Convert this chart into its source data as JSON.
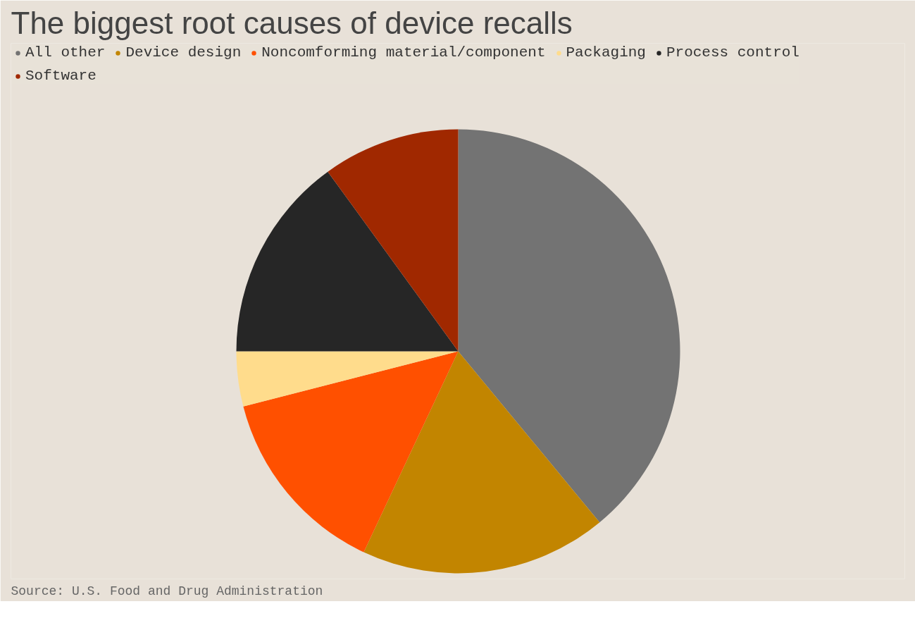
{
  "chart_data": {
    "type": "pie",
    "title": "The biggest root causes of device recalls",
    "categories": [
      "All other",
      "Device design",
      "Noncomforming material/component",
      "Packaging",
      "Process control",
      "Software"
    ],
    "values": [
      39,
      18,
      14,
      4,
      15,
      10
    ],
    "colors": [
      "#737373",
      "#c28500",
      "#ff5000",
      "#ffdc8c",
      "#262626",
      "#a02800"
    ],
    "legend": "top",
    "annotations": [
      "Source: U.S. Food and Drug Administration"
    ]
  }
}
